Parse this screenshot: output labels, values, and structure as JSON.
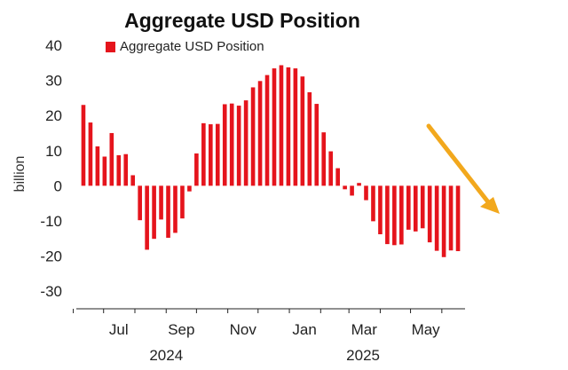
{
  "chart_data": {
    "type": "bar",
    "title": "Aggregate USD Position",
    "ylabel": "billion",
    "xlabel": "",
    "legend": {
      "entries": [
        "Aggregate USD Position"
      ],
      "placement": "top-left"
    },
    "ylim": [
      -35,
      42
    ],
    "yticks": [
      -30,
      -20,
      -10,
      0,
      10,
      20,
      30,
      40
    ],
    "grid": false,
    "x_start": "2024-06-04",
    "x_end": "2025-06-24",
    "x_tick_months": [
      "2024-06",
      "2024-07",
      "2024-08",
      "2024-09",
      "2024-10",
      "2024-11",
      "2024-12",
      "2025-01",
      "2025-02",
      "2025-03",
      "2025-04",
      "2025-05",
      "2025-06"
    ],
    "x_labels": [
      {
        "text": "Jul",
        "date": "2024-07-01"
      },
      {
        "text": "Sep",
        "date": "2024-09-01"
      },
      {
        "text": "Nov",
        "date": "2024-11-01"
      },
      {
        "text": "Jan",
        "date": "2025-01-01"
      },
      {
        "text": "Mar",
        "date": "2025-03-01"
      },
      {
        "text": "May",
        "date": "2025-05-01"
      }
    ],
    "year_labels": [
      {
        "text": "2024",
        "date": "2024-09-01"
      },
      {
        "text": "2025",
        "date": "2025-03-15"
      }
    ],
    "series": [
      {
        "name": "Aggregate USD Position",
        "color": "#e5141c",
        "points": [
          {
            "x": "2024-06-11",
            "y": 23.0
          },
          {
            "x": "2024-06-18",
            "y": 18.0
          },
          {
            "x": "2024-06-25",
            "y": 11.2
          },
          {
            "x": "2024-07-02",
            "y": 8.3
          },
          {
            "x": "2024-07-09",
            "y": 15.0
          },
          {
            "x": "2024-07-16",
            "y": 8.7
          },
          {
            "x": "2024-07-23",
            "y": 9.0
          },
          {
            "x": "2024-07-30",
            "y": 3.0
          },
          {
            "x": "2024-08-06",
            "y": -9.8
          },
          {
            "x": "2024-08-13",
            "y": -18.2
          },
          {
            "x": "2024-08-20",
            "y": -15.1
          },
          {
            "x": "2024-08-27",
            "y": -9.6
          },
          {
            "x": "2024-09-03",
            "y": -14.8
          },
          {
            "x": "2024-09-10",
            "y": -13.4
          },
          {
            "x": "2024-09-17",
            "y": -9.3
          },
          {
            "x": "2024-09-24",
            "y": -1.6
          },
          {
            "x": "2024-10-01",
            "y": 9.2
          },
          {
            "x": "2024-10-08",
            "y": 17.8
          },
          {
            "x": "2024-10-15",
            "y": 17.5
          },
          {
            "x": "2024-10-22",
            "y": 17.6
          },
          {
            "x": "2024-10-29",
            "y": 23.2
          },
          {
            "x": "2024-11-05",
            "y": 23.4
          },
          {
            "x": "2024-11-12",
            "y": 22.8
          },
          {
            "x": "2024-11-19",
            "y": 24.3
          },
          {
            "x": "2024-11-26",
            "y": 28.0
          },
          {
            "x": "2024-12-03",
            "y": 29.8
          },
          {
            "x": "2024-12-10",
            "y": 31.5
          },
          {
            "x": "2024-12-17",
            "y": 33.4
          },
          {
            "x": "2024-12-24",
            "y": 34.3
          },
          {
            "x": "2024-12-31",
            "y": 33.7
          },
          {
            "x": "2025-01-07",
            "y": 33.4
          },
          {
            "x": "2025-01-14",
            "y": 31.1
          },
          {
            "x": "2025-01-21",
            "y": 26.6
          },
          {
            "x": "2025-01-28",
            "y": 23.3
          },
          {
            "x": "2025-02-04",
            "y": 15.2
          },
          {
            "x": "2025-02-11",
            "y": 9.8
          },
          {
            "x": "2025-02-18",
            "y": 5.0
          },
          {
            "x": "2025-02-25",
            "y": -1.0
          },
          {
            "x": "2025-03-04",
            "y": -2.8
          },
          {
            "x": "2025-03-11",
            "y": 0.8
          },
          {
            "x": "2025-03-18",
            "y": -4.1
          },
          {
            "x": "2025-03-25",
            "y": -10.1
          },
          {
            "x": "2025-04-01",
            "y": -13.8
          },
          {
            "x": "2025-04-08",
            "y": -16.6
          },
          {
            "x": "2025-04-15",
            "y": -16.9
          },
          {
            "x": "2025-04-22",
            "y": -16.7
          },
          {
            "x": "2025-04-29",
            "y": -12.5
          },
          {
            "x": "2025-05-06",
            "y": -13.0
          },
          {
            "x": "2025-05-13",
            "y": -12.1
          },
          {
            "x": "2025-05-20",
            "y": -16.1
          },
          {
            "x": "2025-05-27",
            "y": -18.5
          },
          {
            "x": "2025-06-03",
            "y": -20.3
          },
          {
            "x": "2025-06-10",
            "y": -18.4
          },
          {
            "x": "2025-06-17",
            "y": -18.6
          }
        ]
      }
    ],
    "annotation": {
      "shape": "arrow",
      "color": "#f2a81d",
      "direction": "down-right"
    }
  }
}
